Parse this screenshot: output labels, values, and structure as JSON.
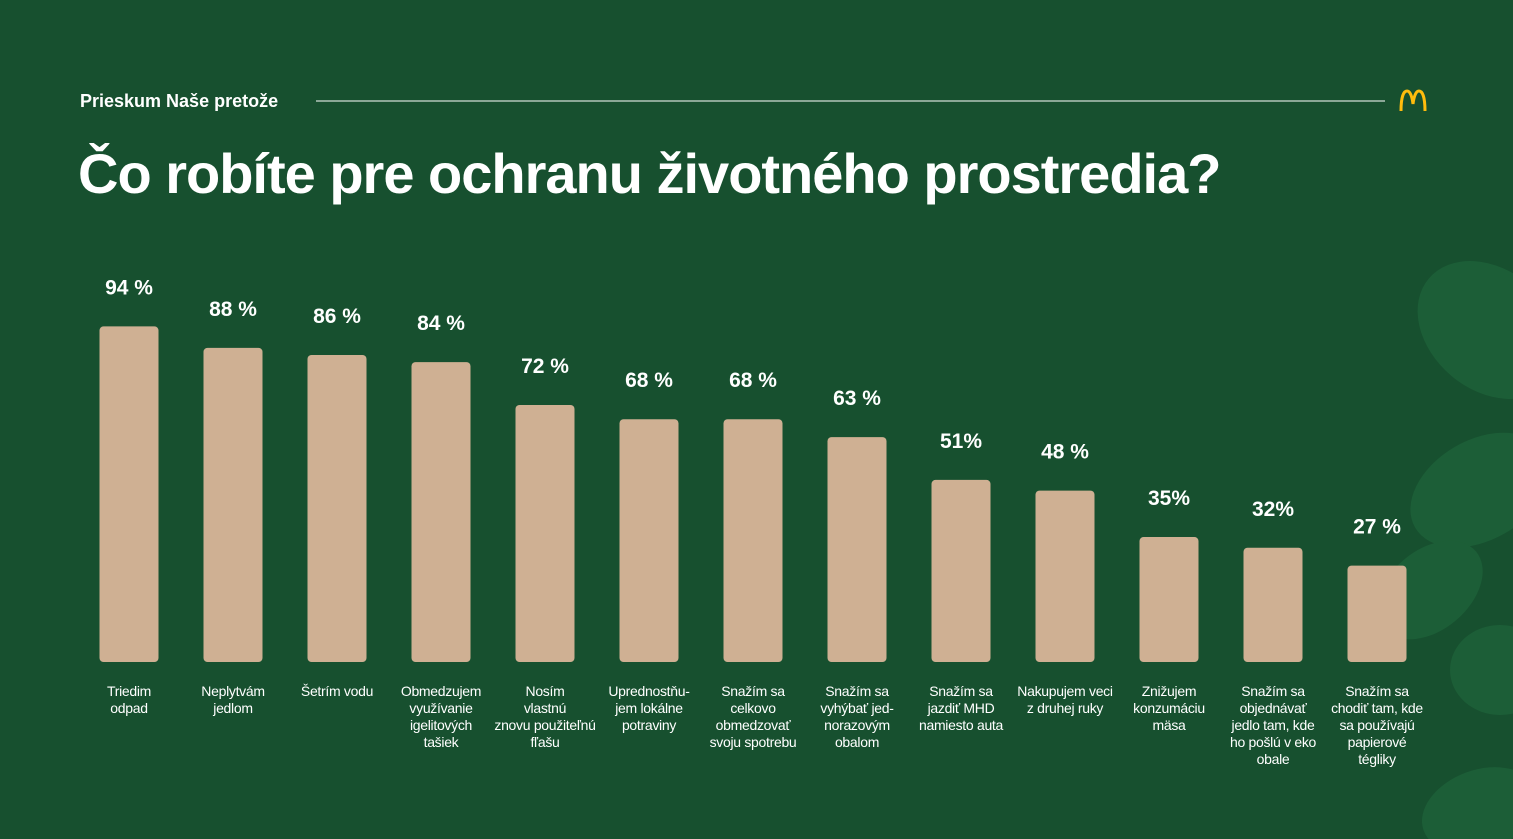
{
  "header": "Prieskum Naše pretože",
  "chart_data": {
    "type": "bar",
    "title": "Čo robíte pre ochranu životného prostredia?",
    "categories": [
      "Triedim\nodpad",
      "Neplytvám\njedlom",
      "Šetrím vodu",
      "Obmedzujem\nvyužívanie\nigelitových\ntašiek",
      "Nosím\nvlastnú\nznovu použiteľnú\nfľašu",
      "Uprednostňu-\njem lokálne\npotraviny",
      "Snažím sa\ncelkovo\nobmedzovať\nsvoju spotrebu",
      "Snažím sa\nvyhýbať jed-\nnorazovým\nobalom",
      "Snažím sa\njazdiť MHD\nnamiesto auta",
      "Nakupujem veci\nz druhej ruky",
      "Znižujem\nkonzumáciu\nmäsa",
      "Snažím sa\nobjednávať\njedlo tam, kde\nho pošlú v eko\nobale",
      "Snažím sa\nchodiť tam, kde\nsa používajú\npapierové\ntégliky"
    ],
    "values": [
      94,
      88,
      86,
      84,
      72,
      68,
      68,
      63,
      51,
      48,
      35,
      32,
      27
    ],
    "value_labels": [
      "94 %",
      "88 %",
      "86 %",
      "84 %",
      "72 %",
      "68 %",
      "68 %",
      "63 %",
      "51%",
      "48 %",
      "35%",
      "32%",
      "27 %"
    ],
    "color": "#cfb093"
  }
}
